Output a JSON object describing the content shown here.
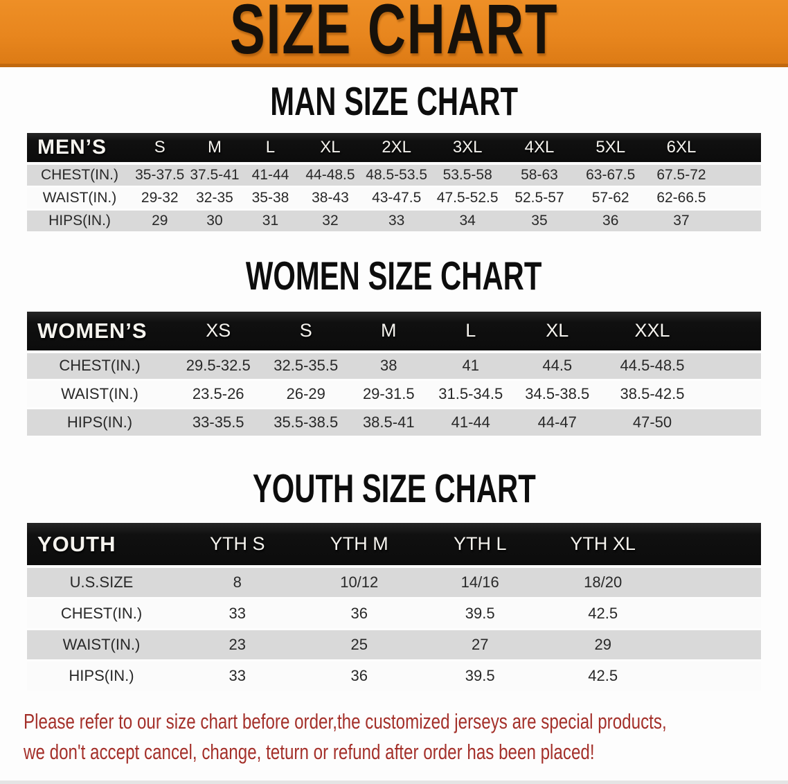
{
  "banner": {
    "title": "SIZE CHART"
  },
  "sections": [
    {
      "heading": "MAN SIZE CHART",
      "table": {
        "category_label": "MEN’S",
        "sizes": [
          "S",
          "M",
          "L",
          "XL",
          "2XL",
          "3XL",
          "4XL",
          "5XL",
          "6XL"
        ],
        "rows": [
          {
            "label": "CHEST(IN.)",
            "values": [
              "35-37.5",
              "37.5-41",
              "41-44",
              "44-48.5",
              "48.5-53.5",
              "53.5-58",
              "58-63",
              "63-67.5",
              "67.5-72"
            ]
          },
          {
            "label": "WAIST(IN.)",
            "values": [
              "29-32",
              "32-35",
              "35-38",
              "38-43",
              "43-47.5",
              "47.5-52.5",
              "52.5-57",
              "57-62",
              "62-66.5"
            ]
          },
          {
            "label": "HIPS(IN.)",
            "values": [
              "29",
              "30",
              "31",
              "32",
              "33",
              "34",
              "35",
              "36",
              "37"
            ]
          }
        ]
      }
    },
    {
      "heading": "WOMEN SIZE CHART",
      "table": {
        "category_label": "WOMEN’S",
        "sizes": [
          "XS",
          "S",
          "M",
          "L",
          "XL",
          "XXL"
        ],
        "rows": [
          {
            "label": "CHEST(IN.)",
            "values": [
              "29.5-32.5",
              "32.5-35.5",
              "38",
              "41",
              "44.5",
              "44.5-48.5"
            ]
          },
          {
            "label": "WAIST(IN.)",
            "values": [
              "23.5-26",
              "26-29",
              "29-31.5",
              "31.5-34.5",
              "34.5-38.5",
              "38.5-42.5"
            ]
          },
          {
            "label": "HIPS(IN.)",
            "values": [
              "33-35.5",
              "35.5-38.5",
              "38.5-41",
              "41-44",
              "44-47",
              "47-50"
            ]
          }
        ]
      }
    },
    {
      "heading": "YOUTH SIZE CHART",
      "table": {
        "category_label": "YOUTH",
        "sizes": [
          "YTH S",
          "YTH M",
          "YTH L",
          "YTH XL"
        ],
        "rows": [
          {
            "label": "U.S.SIZE",
            "values": [
              "8",
              "10/12",
              "14/16",
              "18/20"
            ]
          },
          {
            "label": "CHEST(IN.)",
            "values": [
              "33",
              "36",
              "39.5",
              "42.5"
            ]
          },
          {
            "label": "WAIST(IN.)",
            "values": [
              "23",
              "25",
              "27",
              "29"
            ]
          },
          {
            "label": "HIPS(IN.)",
            "values": [
              "33",
              "36",
              "39.5",
              "42.5"
            ]
          }
        ]
      }
    }
  ],
  "footer": {
    "line1": "Please refer to our size chart before order,the customized jerseys are special products,",
    "line2": "we don't accept cancel, change, teturn or refund after order has been placed!"
  },
  "colors": {
    "banner_orange": "#E8861E",
    "header_black": "#101010",
    "row_gray": "#D9D9D9",
    "row_white": "#FBFBFB",
    "footer_red": "#A4302A"
  }
}
